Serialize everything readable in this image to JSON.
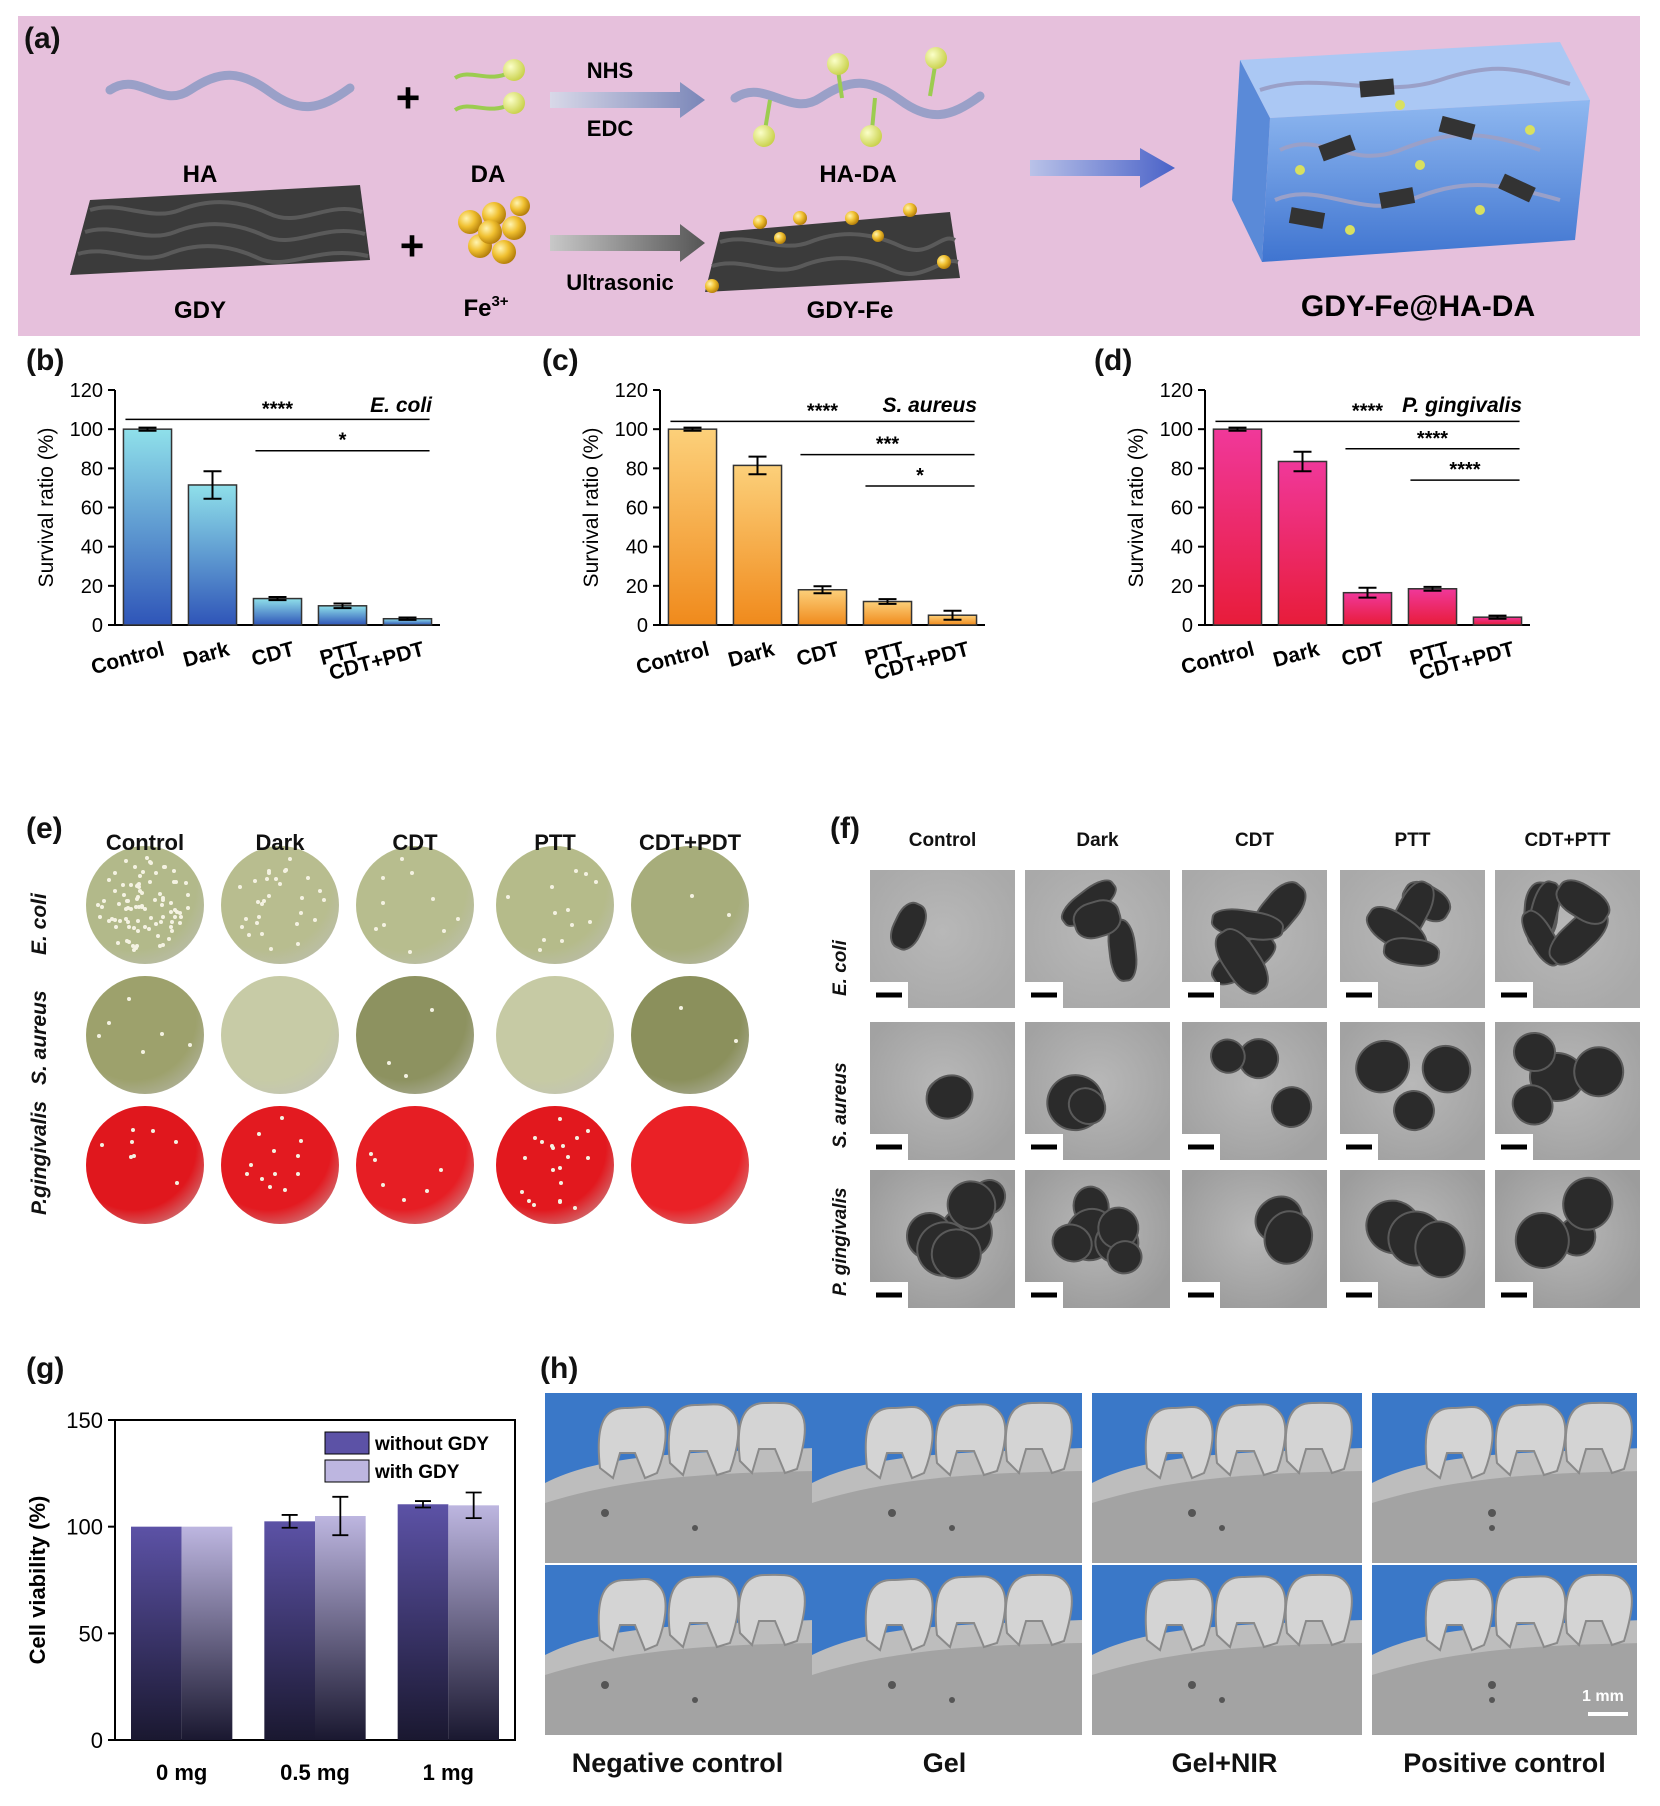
{
  "panel_labels": [
    "(a)",
    "(b)",
    "(c)",
    "(d)",
    "(e)",
    "(f)",
    "(g)",
    "(h)"
  ],
  "schematic": {
    "top_row": [
      "HA",
      "DA",
      "HA-DA"
    ],
    "bottom_row": [
      "GDY",
      "Fe",
      "GDY-Fe"
    ],
    "fe_superscript": "3+",
    "arrow_top": [
      "NHS",
      "EDC"
    ],
    "arrow_bottom": "Ultrasonic",
    "product": "GDY-Fe@HA-DA",
    "plus": "+"
  },
  "colors": {
    "schematic_bg": "#e6c0dc",
    "ecoli_bar_top": "#8fe0ea",
    "ecoli_bar_bottom": "#2f55b8",
    "saureus_bar_top": "#fcd07a",
    "saureus_bar_bottom": "#f08a1c",
    "pging_bar_top": "#f0389a",
    "pging_bar_bottom": "#e81c3a",
    "g_without": "#5c52a6",
    "g_with": "#bdb6e0"
  },
  "chart_data": [
    {
      "id": "b",
      "type": "bar",
      "organism": "E. coli",
      "categories": [
        "Control",
        "Dark",
        "CDT",
        "PTT",
        "CDT+PDT"
      ],
      "values": [
        100,
        71.5,
        13.5,
        9.8,
        3.2
      ],
      "errors": [
        0.8,
        7,
        0.8,
        1.2,
        0.6
      ],
      "ylabel": "Survival ratio (%)",
      "ylim": [
        0,
        120
      ],
      "yticks": [
        0,
        20,
        40,
        60,
        80,
        100,
        120
      ],
      "significance": [
        {
          "from": 0,
          "to": 4,
          "y": 105,
          "label": "****"
        },
        {
          "from": 2,
          "to": 4,
          "y": 89,
          "label": "*"
        }
      ]
    },
    {
      "id": "c",
      "type": "bar",
      "organism": "S. aureus",
      "categories": [
        "Control",
        "Dark",
        "CDT",
        "PTT",
        "CDT+PDT"
      ],
      "values": [
        100,
        81.5,
        18,
        12,
        5
      ],
      "errors": [
        0.8,
        4.5,
        1.8,
        1.2,
        2.3
      ],
      "ylabel": "Survival ratio (%)",
      "ylim": [
        0,
        120
      ],
      "yticks": [
        0,
        20,
        40,
        60,
        80,
        100,
        120
      ],
      "significance": [
        {
          "from": 0,
          "to": 4,
          "y": 104,
          "label": "****"
        },
        {
          "from": 2,
          "to": 4,
          "y": 87,
          "label": "***"
        },
        {
          "from": 3,
          "to": 4,
          "y": 71,
          "label": "*"
        }
      ]
    },
    {
      "id": "d",
      "type": "bar",
      "organism": "P. gingivalis",
      "categories": [
        "Control",
        "Dark",
        "CDT",
        "PTT",
        "CDT+PDT"
      ],
      "values": [
        100,
        83.5,
        16.5,
        18.5,
        4
      ],
      "errors": [
        0.8,
        5,
        2.5,
        1,
        0.8
      ],
      "ylabel": "Survival ratio (%)",
      "ylim": [
        0,
        120
      ],
      "yticks": [
        0,
        20,
        40,
        60,
        80,
        100,
        120
      ],
      "significance": [
        {
          "from": 0,
          "to": 4,
          "y": 104,
          "label": "****"
        },
        {
          "from": 2,
          "to": 4,
          "y": 90,
          "label": "****"
        },
        {
          "from": 3,
          "to": 4,
          "y": 74,
          "label": "****"
        }
      ]
    },
    {
      "id": "g",
      "type": "bar",
      "categories": [
        "0 mg",
        "0.5 mg",
        "1 mg"
      ],
      "series": [
        {
          "name": "without  GDY",
          "values": [
            100,
            102.5,
            110.5
          ],
          "errors": [
            0,
            3,
            1.5
          ]
        },
        {
          "name": "with  GDY",
          "values": [
            100,
            105,
            110
          ],
          "errors": [
            0,
            9,
            6
          ]
        }
      ],
      "ylabel": "Cell viability (%)",
      "ylim": [
        0,
        150
      ],
      "yticks": [
        0,
        50,
        100,
        150
      ],
      "legend": "top-right"
    }
  ],
  "panel_e": {
    "columns": [
      "Control",
      "Dark",
      "CDT",
      "PTT",
      "CDT+PDT"
    ],
    "rows": [
      "E. coli",
      "S. aureus",
      "P.gingivalis"
    ]
  },
  "panel_f": {
    "columns": [
      "Control",
      "Dark",
      "CDT",
      "PTT",
      "CDT+PTT"
    ],
    "rows": [
      "E. coli",
      "S. aureus",
      "P. gingivalis"
    ]
  },
  "panel_h": {
    "columns": [
      "Negative control",
      "Gel",
      "Gel+NIR",
      "Positive control"
    ],
    "scale": "1 mm"
  }
}
